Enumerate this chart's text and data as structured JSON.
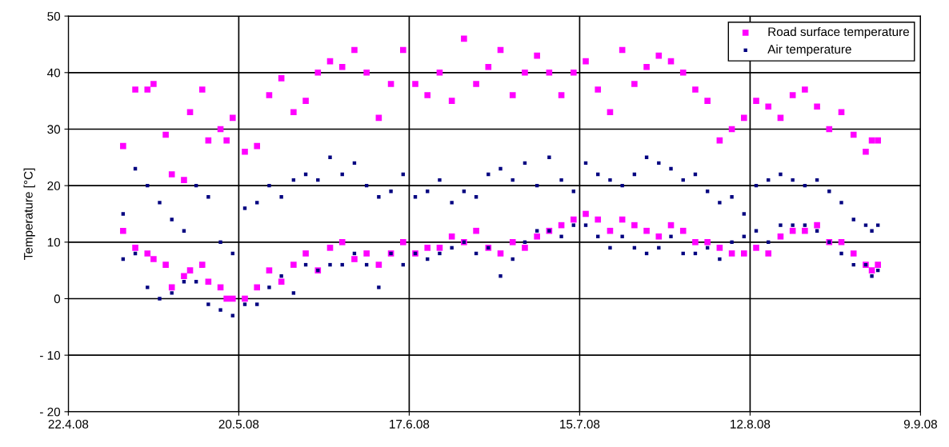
{
  "chart_data": {
    "type": "scatter",
    "ylabel": "Temperature [°C]",
    "xlim": [
      "2008-04-22",
      "2008-09-09"
    ],
    "ylim": [
      -20,
      50
    ],
    "xticks": [
      {
        "value": "2008-04-22",
        "label": "22.4.08"
      },
      {
        "value": "2008-05-20",
        "label": "20.5.08"
      },
      {
        "value": "2008-06-17",
        "label": "17.6.08"
      },
      {
        "value": "2008-07-15",
        "label": "15.7.08"
      },
      {
        "value": "2008-08-12",
        "label": "12.8.08"
      },
      {
        "value": "2008-09-09",
        "label": "9.9.08"
      }
    ],
    "yticks": [
      {
        "value": -20,
        "label": "- 20"
      },
      {
        "value": -10,
        "label": "- 10"
      },
      0,
      10,
      20,
      30,
      40,
      50
    ],
    "grid": true,
    "legend": "top right",
    "marker": "square",
    "series": [
      {
        "name": "Road surface temperature",
        "color": "#ff00ff",
        "x": [
          "2008-05-01",
          "2008-05-01",
          "2008-05-03",
          "2008-05-03",
          "2008-05-05",
          "2008-05-05",
          "2008-05-06",
          "2008-05-06",
          "2008-05-08",
          "2008-05-08",
          "2008-05-09",
          "2008-05-09",
          "2008-05-11",
          "2008-05-11",
          "2008-05-12",
          "2008-05-12",
          "2008-05-14",
          "2008-05-14",
          "2008-05-15",
          "2008-05-15",
          "2008-05-17",
          "2008-05-17",
          "2008-05-18",
          "2008-05-18",
          "2008-05-19",
          "2008-05-19",
          "2008-05-21",
          "2008-05-21",
          "2008-05-23",
          "2008-05-23",
          "2008-05-25",
          "2008-05-25",
          "2008-05-27",
          "2008-05-27",
          "2008-05-29",
          "2008-05-29",
          "2008-05-31",
          "2008-05-31",
          "2008-06-02",
          "2008-06-02",
          "2008-06-04",
          "2008-06-04",
          "2008-06-06",
          "2008-06-06",
          "2008-06-08",
          "2008-06-08",
          "2008-06-10",
          "2008-06-10",
          "2008-06-12",
          "2008-06-12",
          "2008-06-14",
          "2008-06-14",
          "2008-06-16",
          "2008-06-16",
          "2008-06-18",
          "2008-06-18",
          "2008-06-20",
          "2008-06-20",
          "2008-06-22",
          "2008-06-22",
          "2008-06-24",
          "2008-06-24",
          "2008-06-26",
          "2008-06-26",
          "2008-06-28",
          "2008-06-28",
          "2008-06-30",
          "2008-06-30",
          "2008-07-02",
          "2008-07-02",
          "2008-07-04",
          "2008-07-04",
          "2008-07-06",
          "2008-07-06",
          "2008-07-08",
          "2008-07-08",
          "2008-07-10",
          "2008-07-10",
          "2008-07-12",
          "2008-07-12",
          "2008-07-14",
          "2008-07-14",
          "2008-07-16",
          "2008-07-16",
          "2008-07-18",
          "2008-07-18",
          "2008-07-20",
          "2008-07-20",
          "2008-07-22",
          "2008-07-22",
          "2008-07-24",
          "2008-07-24",
          "2008-07-26",
          "2008-07-26",
          "2008-07-28",
          "2008-07-28",
          "2008-07-30",
          "2008-07-30",
          "2008-08-01",
          "2008-08-01",
          "2008-08-03",
          "2008-08-03",
          "2008-08-05",
          "2008-08-05",
          "2008-08-07",
          "2008-08-07",
          "2008-08-09",
          "2008-08-09",
          "2008-08-11",
          "2008-08-11",
          "2008-08-13",
          "2008-08-13",
          "2008-08-15",
          "2008-08-15",
          "2008-08-17",
          "2008-08-17",
          "2008-08-19",
          "2008-08-19",
          "2008-08-21",
          "2008-08-21",
          "2008-08-23",
          "2008-08-23",
          "2008-08-25",
          "2008-08-25",
          "2008-08-27",
          "2008-08-27",
          "2008-08-29",
          "2008-08-29",
          "2008-08-31",
          "2008-08-31",
          "2008-09-01",
          "2008-09-01",
          "2008-09-02",
          "2008-09-02"
        ],
        "values": [
          27,
          12,
          37,
          9,
          37,
          8,
          38,
          7,
          29,
          6,
          22,
          2,
          21,
          4,
          33,
          5,
          37,
          6,
          28,
          3,
          30,
          2,
          28,
          0,
          32,
          0,
          26,
          0,
          27,
          2,
          36,
          5,
          39,
          3,
          33,
          6,
          35,
          8,
          40,
          5,
          42,
          9,
          41,
          10,
          44,
          7,
          40,
          8,
          32,
          6,
          38,
          8,
          44,
          10,
          38,
          8,
          36,
          9,
          40,
          9,
          35,
          11,
          46,
          10,
          38,
          12,
          41,
          9,
          44,
          8,
          36,
          10,
          40,
          9,
          43,
          11,
          40,
          12,
          36,
          13,
          40,
          14,
          42,
          15,
          37,
          14,
          33,
          12,
          44,
          14,
          38,
          13,
          41,
          12,
          43,
          11,
          42,
          13,
          40,
          12,
          37,
          10,
          35,
          10,
          28,
          9,
          30,
          8,
          32,
          8,
          35,
          9,
          34,
          8,
          32,
          11,
          36,
          12,
          37,
          12,
          34,
          13,
          30,
          10,
          33,
          10,
          29,
          8,
          26,
          6,
          28,
          5,
          28,
          6
        ]
      },
      {
        "name": "Air temperature",
        "color": "#000080",
        "x": [
          "2008-05-01",
          "2008-05-01",
          "2008-05-03",
          "2008-05-03",
          "2008-05-05",
          "2008-05-05",
          "2008-05-07",
          "2008-05-07",
          "2008-05-09",
          "2008-05-09",
          "2008-05-11",
          "2008-05-11",
          "2008-05-13",
          "2008-05-13",
          "2008-05-15",
          "2008-05-15",
          "2008-05-17",
          "2008-05-17",
          "2008-05-19",
          "2008-05-19",
          "2008-05-21",
          "2008-05-21",
          "2008-05-23",
          "2008-05-23",
          "2008-05-25",
          "2008-05-25",
          "2008-05-27",
          "2008-05-27",
          "2008-05-29",
          "2008-05-29",
          "2008-05-31",
          "2008-05-31",
          "2008-06-02",
          "2008-06-02",
          "2008-06-04",
          "2008-06-04",
          "2008-06-06",
          "2008-06-06",
          "2008-06-08",
          "2008-06-08",
          "2008-06-10",
          "2008-06-10",
          "2008-06-12",
          "2008-06-12",
          "2008-06-14",
          "2008-06-14",
          "2008-06-16",
          "2008-06-16",
          "2008-06-18",
          "2008-06-18",
          "2008-06-20",
          "2008-06-20",
          "2008-06-22",
          "2008-06-22",
          "2008-06-24",
          "2008-06-24",
          "2008-06-26",
          "2008-06-26",
          "2008-06-28",
          "2008-06-28",
          "2008-06-30",
          "2008-06-30",
          "2008-07-02",
          "2008-07-02",
          "2008-07-04",
          "2008-07-04",
          "2008-07-06",
          "2008-07-06",
          "2008-07-08",
          "2008-07-08",
          "2008-07-10",
          "2008-07-10",
          "2008-07-12",
          "2008-07-12",
          "2008-07-14",
          "2008-07-14",
          "2008-07-16",
          "2008-07-16",
          "2008-07-18",
          "2008-07-18",
          "2008-07-20",
          "2008-07-20",
          "2008-07-22",
          "2008-07-22",
          "2008-07-24",
          "2008-07-24",
          "2008-07-26",
          "2008-07-26",
          "2008-07-28",
          "2008-07-28",
          "2008-07-30",
          "2008-07-30",
          "2008-08-01",
          "2008-08-01",
          "2008-08-03",
          "2008-08-03",
          "2008-08-05",
          "2008-08-05",
          "2008-08-07",
          "2008-08-07",
          "2008-08-09",
          "2008-08-09",
          "2008-08-11",
          "2008-08-11",
          "2008-08-13",
          "2008-08-13",
          "2008-08-15",
          "2008-08-15",
          "2008-08-17",
          "2008-08-17",
          "2008-08-19",
          "2008-08-19",
          "2008-08-21",
          "2008-08-21",
          "2008-08-23",
          "2008-08-23",
          "2008-08-25",
          "2008-08-25",
          "2008-08-27",
          "2008-08-27",
          "2008-08-29",
          "2008-08-29",
          "2008-08-31",
          "2008-08-31",
          "2008-09-01",
          "2008-09-01",
          "2008-09-02",
          "2008-09-02"
        ],
        "values": [
          15,
          7,
          23,
          8,
          20,
          2,
          17,
          0,
          14,
          1,
          12,
          3,
          20,
          3,
          18,
          -1,
          10,
          -2,
          8,
          -3,
          16,
          -1,
          17,
          -1,
          20,
          2,
          18,
          4,
          21,
          1,
          22,
          6,
          21,
          5,
          25,
          6,
          22,
          6,
          24,
          8,
          20,
          6,
          18,
          2,
          19,
          8,
          22,
          6,
          18,
          8,
          19,
          7,
          21,
          8,
          17,
          9,
          19,
          10,
          18,
          8,
          22,
          9,
          23,
          4,
          21,
          7,
          24,
          10,
          20,
          12,
          25,
          12,
          21,
          11,
          19,
          13,
          24,
          13,
          22,
          11,
          21,
          9,
          20,
          11,
          22,
          9,
          25,
          8,
          24,
          9,
          23,
          11,
          21,
          8,
          22,
          8,
          19,
          9,
          17,
          7,
          18,
          10,
          15,
          11,
          20,
          12,
          21,
          10,
          22,
          13,
          21,
          13,
          20,
          13,
          21,
          12,
          19,
          10,
          17,
          8,
          14,
          6,
          13,
          6,
          12,
          4,
          13,
          5
        ]
      }
    ]
  }
}
